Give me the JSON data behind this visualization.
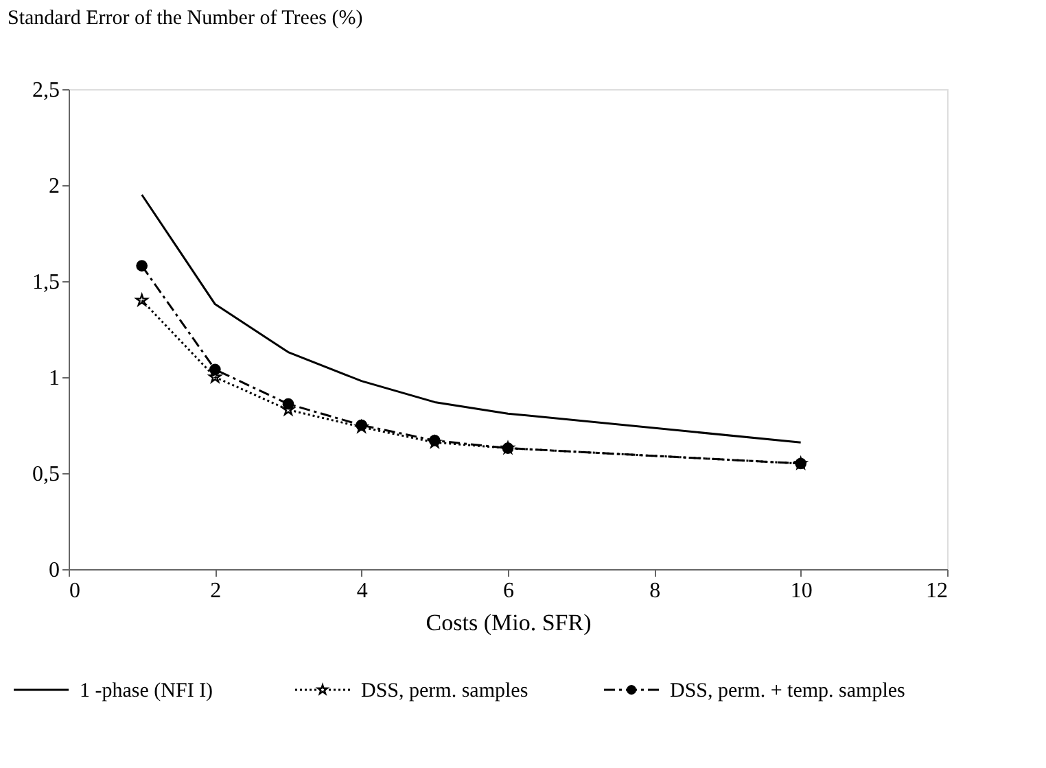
{
  "chart_data": {
    "type": "line",
    "xlabel": "Costs (Mio. SFR)",
    "ylabel": "Standard Error of the Number of Trees (%)",
    "x": [
      1,
      2,
      3,
      4,
      5,
      6,
      10
    ],
    "series": [
      {
        "name": "1 -phase (NFI I)",
        "color": "#000000",
        "values": [
          1.95,
          1.38,
          1.13,
          0.98,
          0.87,
          0.81,
          0.66
        ],
        "marker": "none",
        "line_style": "solid"
      },
      {
        "name": "DSS, perm. samples",
        "color": "#000000",
        "values": [
          1.4,
          1.0,
          0.83,
          0.74,
          0.66,
          0.63,
          0.55
        ],
        "marker": "star",
        "line_style": "dotted"
      },
      {
        "name": "DSS, perm. + temp. samples",
        "color": "#000000",
        "values": [
          1.58,
          1.04,
          0.86,
          0.75,
          0.67,
          0.63,
          0.55
        ],
        "marker": "circle",
        "line_style": "dashed"
      }
    ],
    "xlim": [
      0,
      12
    ],
    "xticks": [
      0,
      2,
      4,
      6,
      8,
      10,
      12
    ],
    "ylim": [
      0,
      2.5
    ],
    "yticks": [
      0,
      {
        "value": 0.5,
        "label": "0,5"
      },
      1,
      {
        "value": 1.5,
        "label": "1,5"
      },
      2,
      {
        "value": 2.5,
        "label": "2,5"
      }
    ],
    "grid": false,
    "legend": "bottom"
  }
}
